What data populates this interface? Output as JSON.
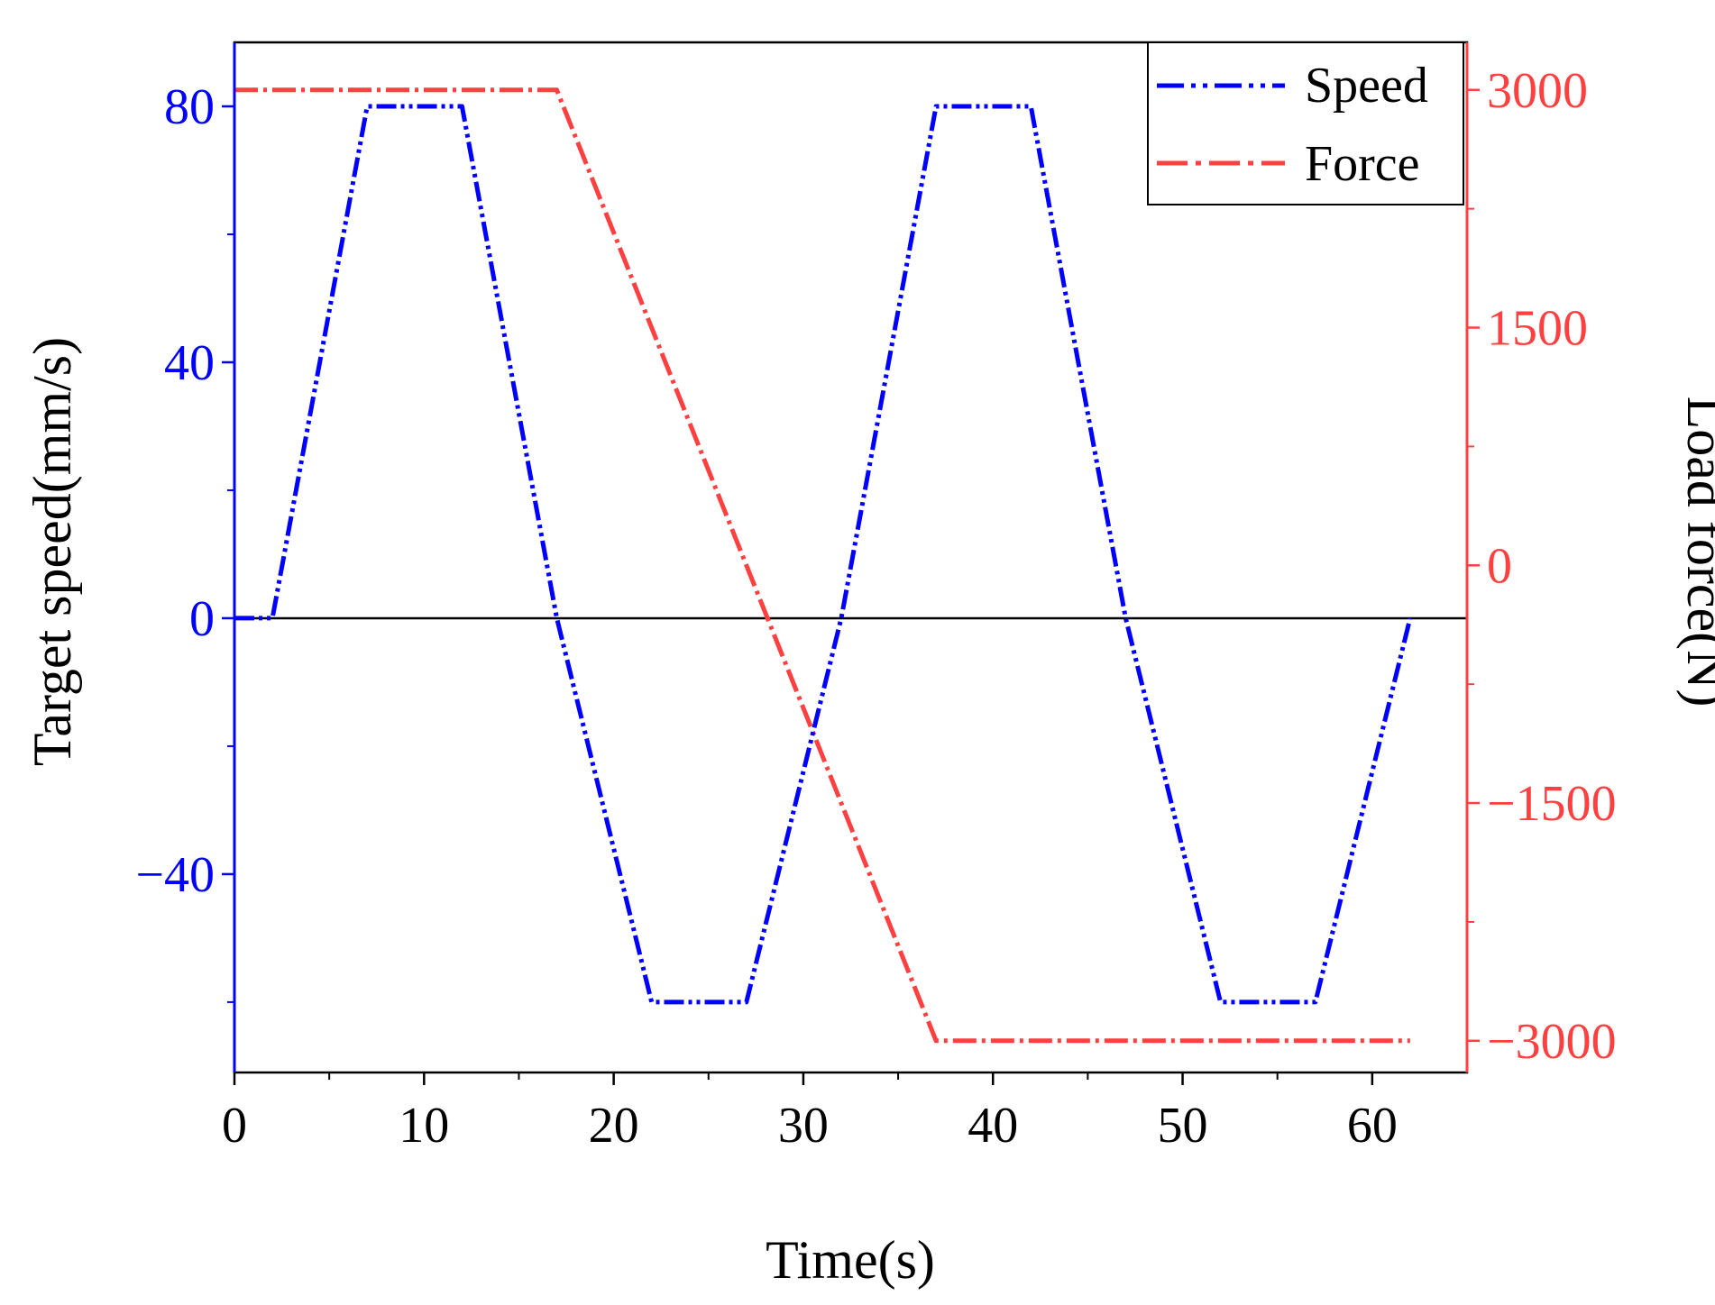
{
  "chart_data": {
    "type": "line",
    "xlabel": "Time(s)",
    "ylabel_left": "Target speed(mm/s)",
    "ylabel_right": "Load force(N)",
    "xlim": [
      0,
      65
    ],
    "ylim_left": [
      -71,
      90
    ],
    "ylim_right": [
      -3200,
      3300
    ],
    "x_ticks": [
      0,
      10,
      20,
      30,
      40,
      50,
      60
    ],
    "y_left_ticks": [
      -40,
      0,
      40,
      80
    ],
    "y_right_ticks": [
      -3000,
      -1500,
      0,
      1500,
      3000
    ],
    "x_ticks_labels": [
      "0",
      "10",
      "20",
      "30",
      "40",
      "50",
      "60"
    ],
    "y_left_ticks_labels": [
      "−40",
      "0",
      "40",
      "80"
    ],
    "y_right_ticks_labels": [
      "−3000",
      "−1500",
      "0",
      "1500",
      "3000"
    ],
    "zero_line": 0,
    "legend_position": "top-right",
    "series": [
      {
        "name": "Speed",
        "axis": "left",
        "color": "#0000ff",
        "style": "dash-dot-dot",
        "x": [
          0,
          2,
          7,
          12,
          17,
          22,
          27,
          32,
          37,
          42,
          47,
          52,
          57,
          62
        ],
        "y": [
          0,
          0,
          80,
          80,
          0,
          -60,
          -60,
          0,
          80,
          80,
          0,
          -60,
          -60,
          0
        ]
      },
      {
        "name": "Force",
        "axis": "right",
        "color": "#ff4040",
        "style": "dash-dot",
        "x": [
          0,
          17,
          37,
          62
        ],
        "y": [
          3000,
          3000,
          -3000,
          -3000
        ]
      }
    ]
  }
}
